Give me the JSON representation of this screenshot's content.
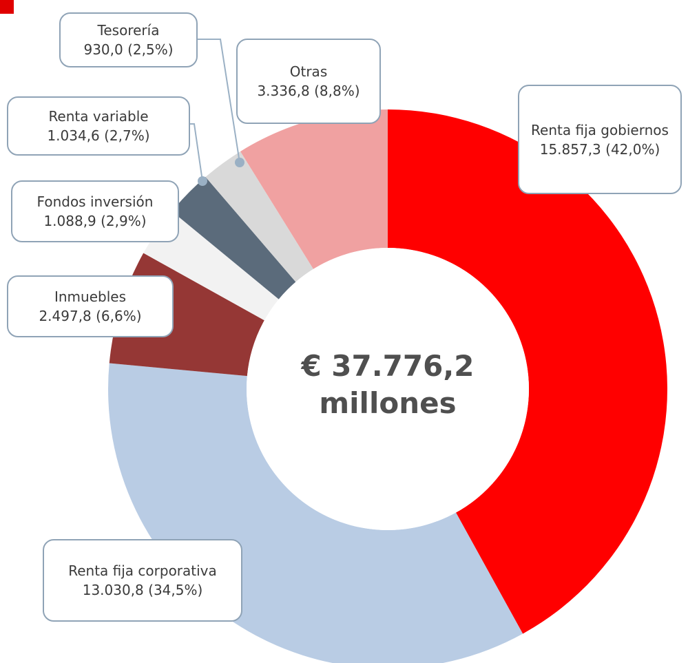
{
  "chart_data": {
    "type": "pie",
    "donut": true,
    "center_label": "€ 37.776,2 millones",
    "categories": [
      "Renta fija gobiernos",
      "Renta fija corporativa",
      "Inmuebles",
      "Fondos inversión",
      "Renta variable",
      "Tesorería",
      "Otras"
    ],
    "values": [
      15857.3,
      13030.8,
      2497.8,
      1088.9,
      1034.6,
      930.0,
      3336.8
    ],
    "value_labels": [
      "15.857,3 (42,0%)",
      "13.030,8 (34,5%)",
      "2.497,8 (6,6%)",
      "1.088,9 (2,9%)",
      "1.034,6 (2,7%)",
      "930,0 (2,5%)",
      "3.336,8 (8,8%)"
    ],
    "colors": [
      "#ff0000",
      "#b9cce4",
      "#953735",
      "#f2f2f2",
      "#5b6b7b",
      "#d9d9d9",
      "#f0a1a1"
    ]
  }
}
